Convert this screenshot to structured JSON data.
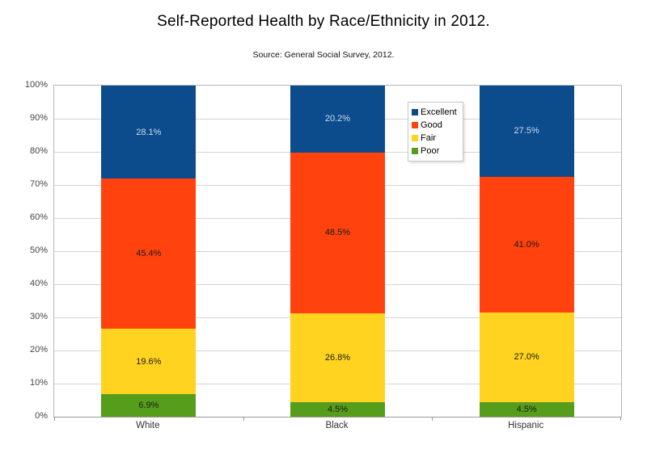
{
  "chart": {
    "title": "Self-Reported Health by Race/Ethnicity in 2012.",
    "subtitle": "Source: General Social Survey, 2012."
  },
  "chart_data": {
    "type": "bar",
    "variant": "stacked-percent-column",
    "title": "Self-Reported Health by Race/Ethnicity in 2012.",
    "subtitle": "Source: General Social Survey, 2012.",
    "categories": [
      "White",
      "Black",
      "Hispanic"
    ],
    "series": [
      {
        "name": "Poor",
        "color": "#579d1c",
        "label_color": "#1a1a1a",
        "values": [
          6.9,
          4.5,
          4.5
        ]
      },
      {
        "name": "Fair",
        "color": "#ffd320",
        "label_color": "#1a1a1a",
        "values": [
          19.6,
          26.8,
          27.0
        ]
      },
      {
        "name": "Good",
        "color": "#ff420e",
        "label_color": "#1a1a1a",
        "values": [
          45.4,
          48.5,
          41.0
        ]
      },
      {
        "name": "Excellent",
        "color": "#0c4c8c",
        "label_color": "#ccdcf0",
        "values": [
          28.1,
          20.2,
          27.5
        ]
      }
    ],
    "value_label_suffix": "%",
    "legend": {
      "position": "inside-top-right",
      "entries": [
        "Excellent",
        "Good",
        "Fair",
        "Poor"
      ]
    },
    "y_axis": {
      "min": 0,
      "max": 100,
      "step": 10,
      "tick_suffix": "%"
    },
    "ylim": [
      0,
      100
    ],
    "grid": "horizontal",
    "bar_width_fraction": 0.5,
    "colors": {
      "gridline": "#d4d4d4",
      "plot_border": "#b7b7b7",
      "axis_text": "#444444",
      "title_text": "#000000"
    }
  }
}
